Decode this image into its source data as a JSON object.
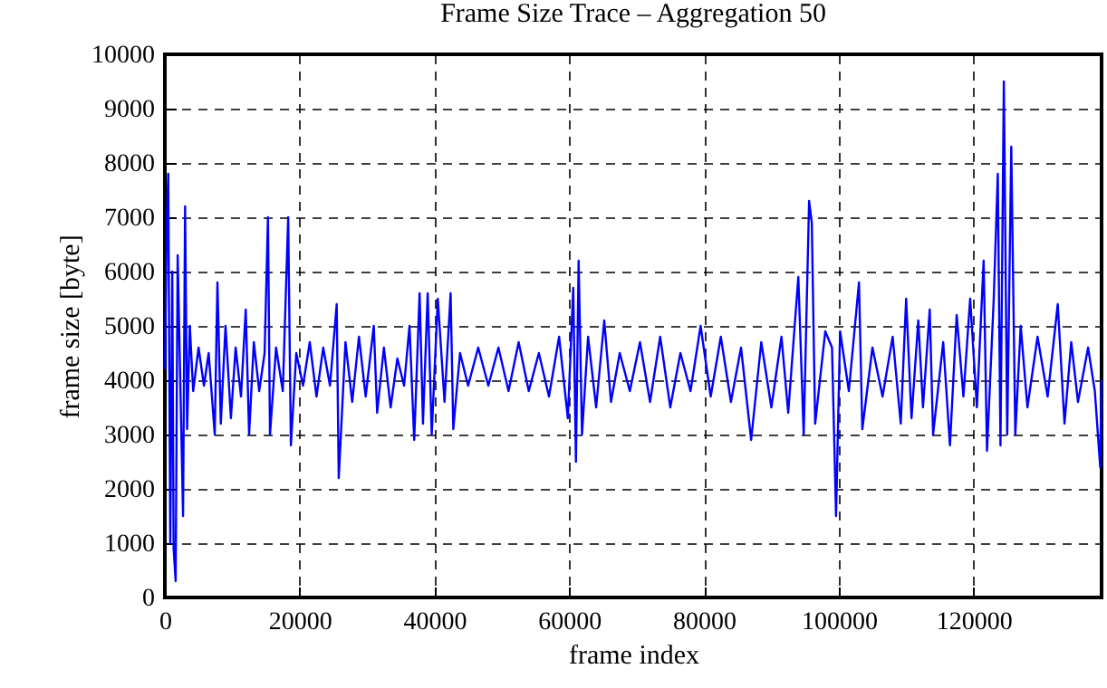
{
  "chart_data": {
    "type": "line",
    "title": "Frame Size Trace – Aggregation 50",
    "xlabel": "frame index",
    "ylabel": "frame size [byte]",
    "xlim": [
      0,
      139000
    ],
    "xticks": [
      0,
      20000,
      40000,
      60000,
      80000,
      100000,
      120000
    ],
    "ylim": [
      0,
      10000
    ],
    "yticks": [
      0,
      1000,
      2000,
      3000,
      4000,
      5000,
      6000,
      7000,
      8000,
      9000,
      10000
    ],
    "grid": true,
    "legend": false,
    "marker": "none",
    "line_style": "solid",
    "x": [
      0,
      300,
      500,
      800,
      1100,
      1300,
      1600,
      1900,
      2200,
      2700,
      3000,
      3300,
      3700,
      4200,
      5000,
      5800,
      6500,
      7400,
      7800,
      8300,
      9000,
      9800,
      10500,
      11300,
      12000,
      12500,
      13200,
      14000,
      14800,
      15300,
      15600,
      16500,
      17500,
      18300,
      18700,
      19500,
      20500,
      21500,
      22500,
      23500,
      24500,
      25500,
      25800,
      26800,
      27800,
      28800,
      29800,
      31000,
      31500,
      32500,
      33500,
      34500,
      35500,
      36300,
      37000,
      37800,
      38300,
      39000,
      39600,
      40500,
      41500,
      42400,
      42800,
      43800,
      45000,
      46500,
      48000,
      49500,
      51000,
      52500,
      54000,
      55500,
      57000,
      58500,
      59800,
      60600,
      61000,
      61400,
      61900,
      62800,
      64000,
      65200,
      66200,
      67500,
      69000,
      70500,
      72000,
      73500,
      75000,
      76500,
      78000,
      79500,
      81000,
      82500,
      84000,
      85500,
      87000,
      88500,
      90000,
      91500,
      92500,
      94000,
      94800,
      95600,
      96000,
      96500,
      98000,
      99000,
      99600,
      100200,
      101500,
      103000,
      103500,
      105000,
      106500,
      108000,
      109200,
      110000,
      110800,
      111800,
      112500,
      113500,
      114000,
      115500,
      116500,
      117500,
      118500,
      119500,
      120500,
      121500,
      122000,
      123000,
      123600,
      124000,
      124500,
      125000,
      125600,
      126200,
      127000,
      128000,
      129500,
      131000,
      132500,
      133500,
      134500,
      135500,
      137000,
      138000,
      138800,
      139000
    ],
    "series": [
      {
        "color": "#0000ff",
        "values": [
          4200,
          7000,
          7800,
          1000,
          6000,
          900,
          300,
          6300,
          4500,
          1500,
          7200,
          3100,
          5000,
          3800,
          4600,
          3900,
          4500,
          3000,
          5800,
          3200,
          5000,
          3300,
          4600,
          3700,
          5300,
          3000,
          4700,
          3800,
          4500,
          7000,
          3000,
          4600,
          3800,
          7000,
          2800,
          4500,
          3900,
          4700,
          3700,
          4600,
          3900,
          5400,
          2200,
          4700,
          3600,
          4800,
          3700,
          5000,
          3400,
          4600,
          3500,
          4400,
          3900,
          5000,
          2900,
          5600,
          3200,
          5600,
          3000,
          5500,
          3600,
          5600,
          3100,
          4500,
          3900,
          4600,
          3900,
          4600,
          3800,
          4700,
          3800,
          4500,
          3700,
          4800,
          3300,
          5700,
          2500,
          6200,
          3000,
          4800,
          3500,
          5100,
          3600,
          4500,
          3800,
          4700,
          3600,
          4800,
          3500,
          4500,
          3800,
          5000,
          3700,
          4800,
          3600,
          4600,
          2900,
          4700,
          3500,
          4800,
          3400,
          5900,
          3000,
          7300,
          6900,
          3200,
          4900,
          4600,
          1500,
          4900,
          3800,
          5800,
          3100,
          4600,
          3700,
          4800,
          3200,
          5500,
          3300,
          5100,
          3500,
          5300,
          3000,
          4700,
          2800,
          5200,
          3700,
          5500,
          3500,
          6200,
          2700,
          5500,
          7800,
          2800,
          9500,
          3000,
          8300,
          3000,
          5000,
          3500,
          4800,
          3700,
          5400,
          3200,
          4700,
          3600,
          4600,
          3800,
          2400,
          4000
        ]
      }
    ]
  }
}
